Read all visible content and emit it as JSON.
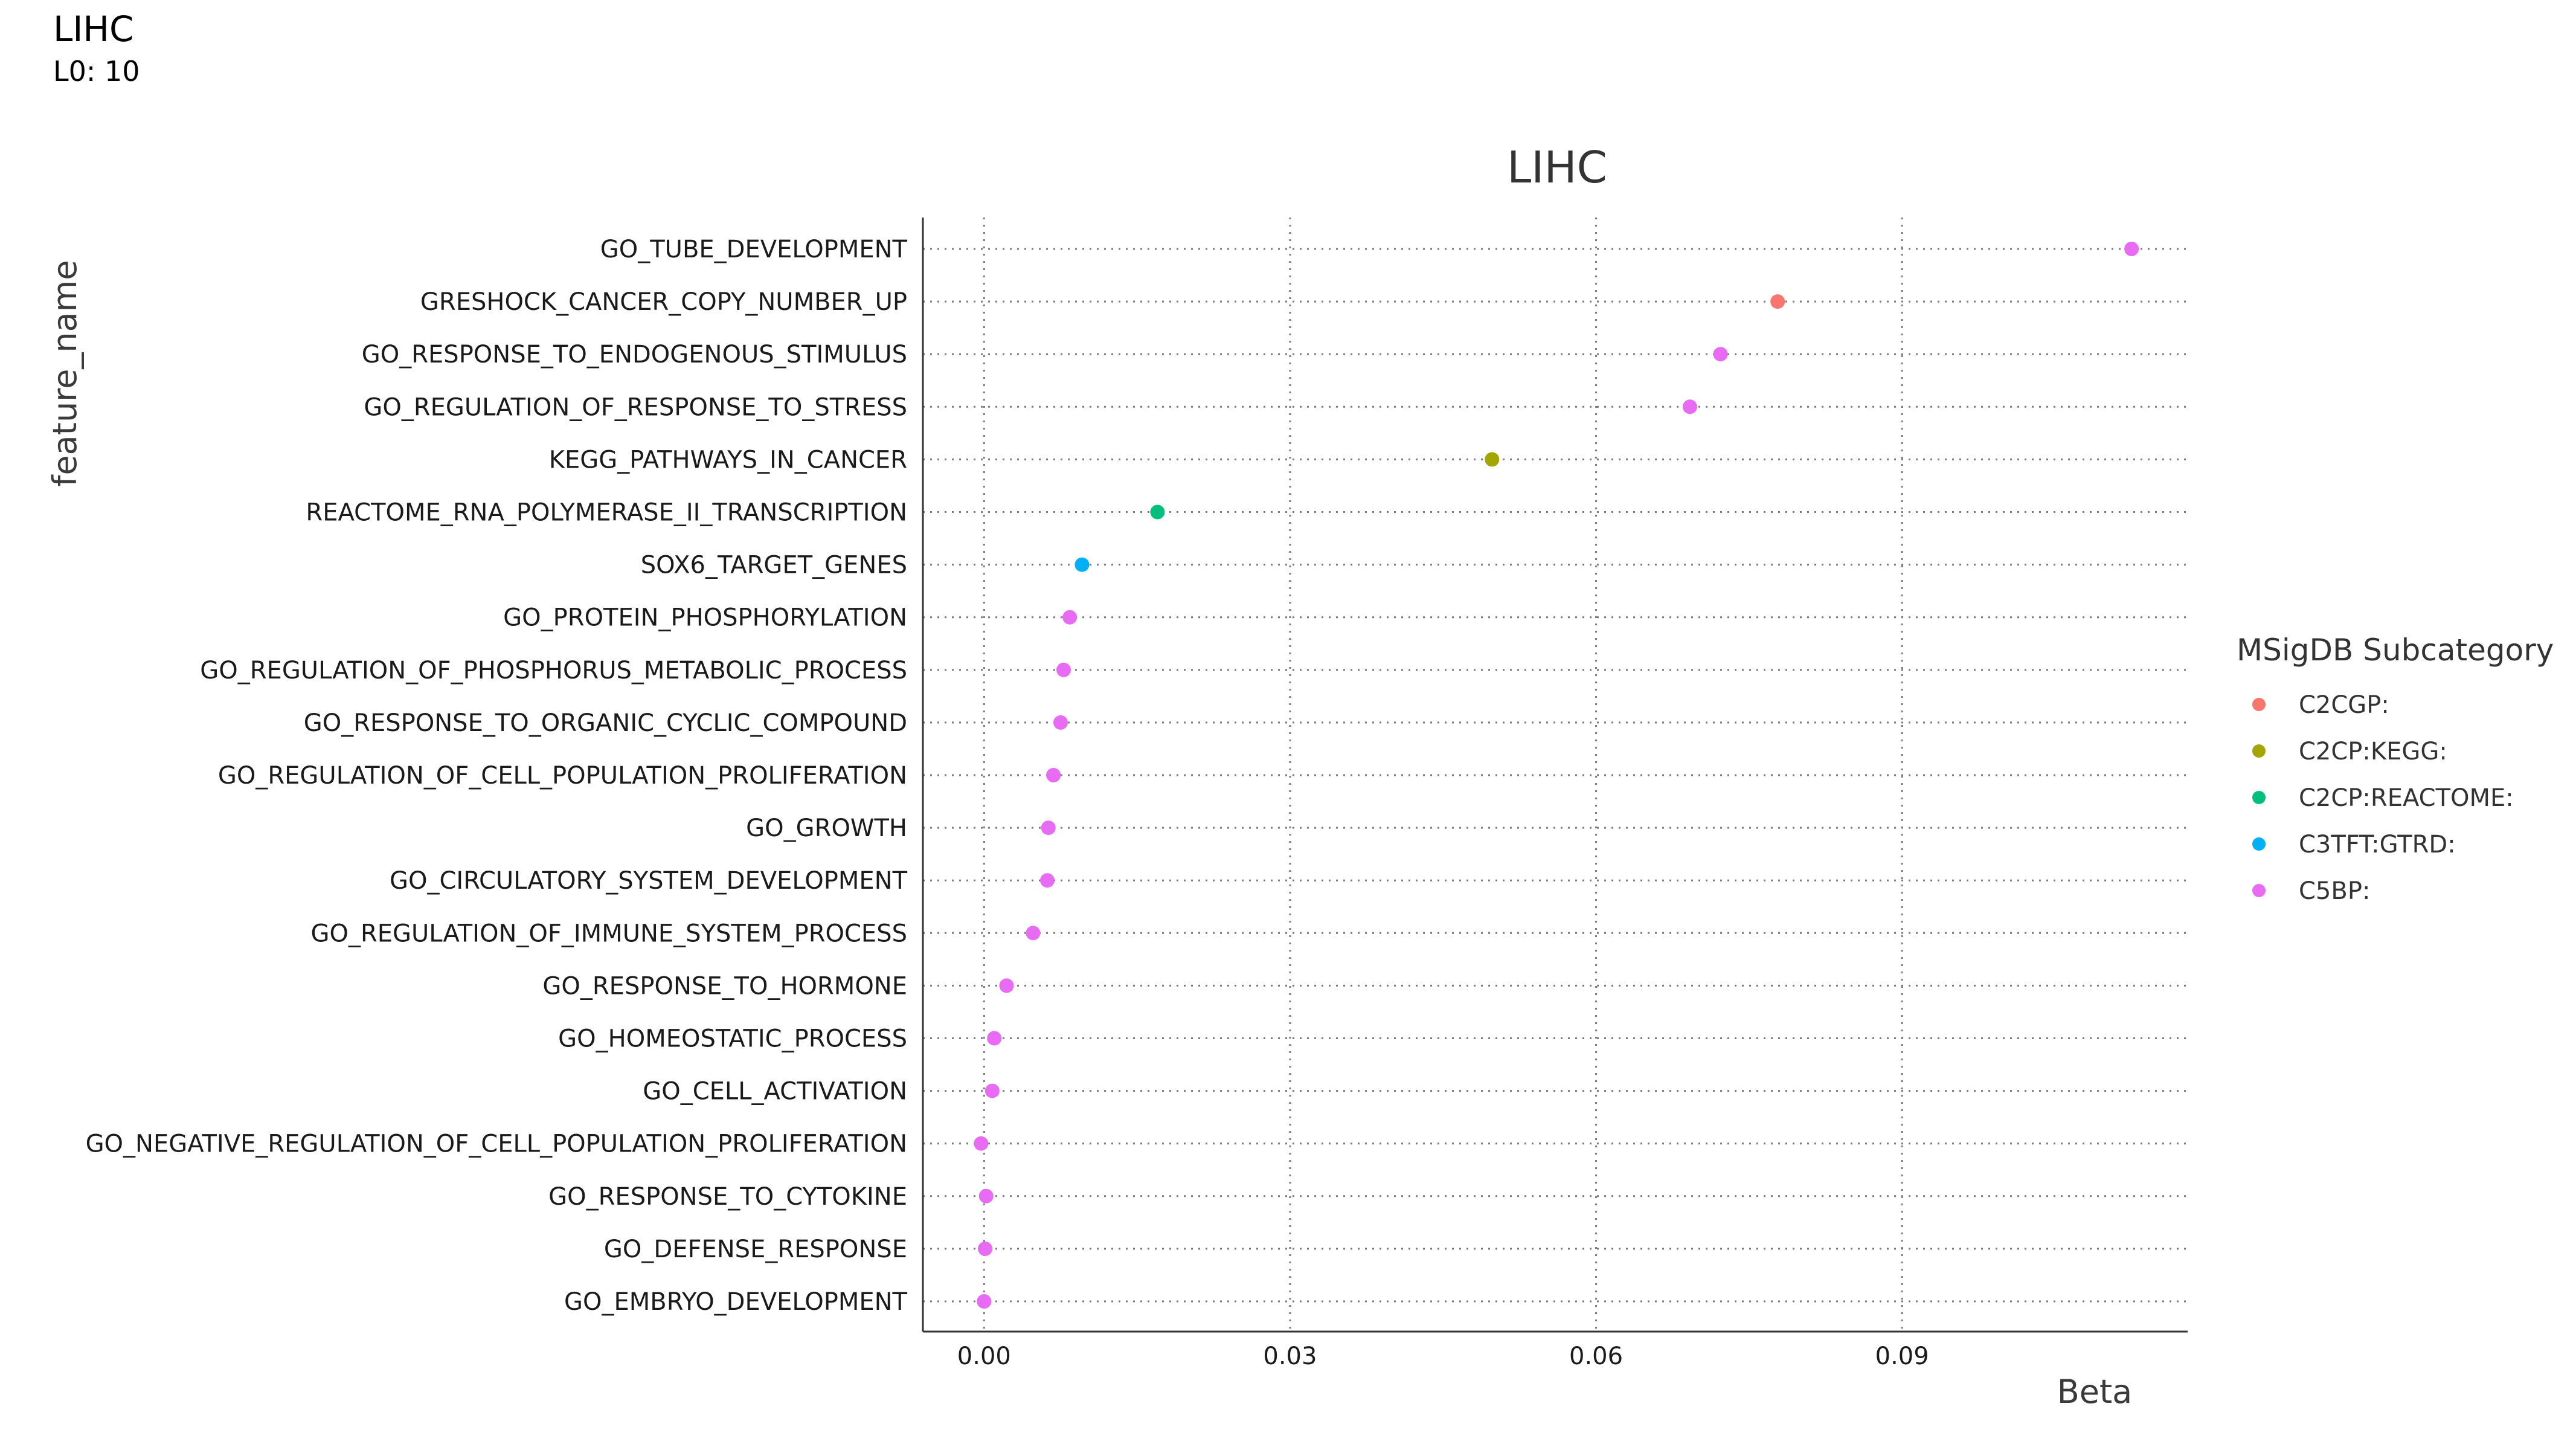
{
  "header": {
    "title": "LIHC",
    "subtitle": "L0: 10"
  },
  "chart_data": {
    "type": "scatter",
    "title": "LIHC",
    "xlabel": "Beta",
    "ylabel": "feature_name",
    "xlim": [
      -0.006,
      0.118
    ],
    "x_ticks": [
      0.0,
      0.03,
      0.06,
      0.09
    ],
    "x_tick_labels": [
      "0.00",
      "0.03",
      "0.06",
      "0.09"
    ],
    "grid": true,
    "legend": {
      "title": "MSigDB Subcategory",
      "placement": "right",
      "entries": [
        {
          "name": "C2CGP:",
          "color": "#F8766D"
        },
        {
          "name": "C2CP:KEGG:",
          "color": "#A3A500"
        },
        {
          "name": "C2CP:REACTOME:",
          "color": "#00BF7D"
        },
        {
          "name": "C3TFT:GTRD:",
          "color": "#00B0F6"
        },
        {
          "name": "C5BP:",
          "color": "#E76BF3"
        }
      ]
    },
    "points": [
      {
        "feature": "GO_TUBE_DEVELOPMENT",
        "beta": 0.1125,
        "category": "C5BP:"
      },
      {
        "feature": "GRESHOCK_CANCER_COPY_NUMBER_UP",
        "beta": 0.0778,
        "category": "C2CGP:"
      },
      {
        "feature": "GO_RESPONSE_TO_ENDOGENOUS_STIMULUS",
        "beta": 0.0722,
        "category": "C5BP:"
      },
      {
        "feature": "GO_REGULATION_OF_RESPONSE_TO_STRESS",
        "beta": 0.0692,
        "category": "C5BP:"
      },
      {
        "feature": "KEGG_PATHWAYS_IN_CANCER",
        "beta": 0.0498,
        "category": "C2CP:KEGG:"
      },
      {
        "feature": "REACTOME_RNA_POLYMERASE_II_TRANSCRIPTION",
        "beta": 0.017,
        "category": "C2CP:REACTOME:"
      },
      {
        "feature": "SOX6_TARGET_GENES",
        "beta": 0.0096,
        "category": "C3TFT:GTRD:"
      },
      {
        "feature": "GO_PROTEIN_PHOSPHORYLATION",
        "beta": 0.0084,
        "category": "C5BP:"
      },
      {
        "feature": "GO_REGULATION_OF_PHOSPHORUS_METABOLIC_PROCESS",
        "beta": 0.0078,
        "category": "C5BP:"
      },
      {
        "feature": "GO_RESPONSE_TO_ORGANIC_CYCLIC_COMPOUND",
        "beta": 0.0075,
        "category": "C5BP:"
      },
      {
        "feature": "GO_REGULATION_OF_CELL_POPULATION_PROLIFERATION",
        "beta": 0.0068,
        "category": "C5BP:"
      },
      {
        "feature": "GO_GROWTH",
        "beta": 0.0063,
        "category": "C5BP:"
      },
      {
        "feature": "GO_CIRCULATORY_SYSTEM_DEVELOPMENT",
        "beta": 0.0062,
        "category": "C5BP:"
      },
      {
        "feature": "GO_REGULATION_OF_IMMUNE_SYSTEM_PROCESS",
        "beta": 0.0048,
        "category": "C5BP:"
      },
      {
        "feature": "GO_RESPONSE_TO_HORMONE",
        "beta": 0.0022,
        "category": "C5BP:"
      },
      {
        "feature": "GO_HOMEOSTATIC_PROCESS",
        "beta": 0.001,
        "category": "C5BP:"
      },
      {
        "feature": "GO_CELL_ACTIVATION",
        "beta": 0.0008,
        "category": "C5BP:"
      },
      {
        "feature": "GO_NEGATIVE_REGULATION_OF_CELL_POPULATION_PROLIFERATION",
        "beta": -0.0003,
        "category": "C5BP:"
      },
      {
        "feature": "GO_RESPONSE_TO_CYTOKINE",
        "beta": 0.0002,
        "category": "C5BP:"
      },
      {
        "feature": "GO_DEFENSE_RESPONSE",
        "beta": 0.0001,
        "category": "C5BP:"
      },
      {
        "feature": "GO_EMBRYO_DEVELOPMENT",
        "beta": 0.0,
        "category": "C5BP:"
      }
    ]
  }
}
